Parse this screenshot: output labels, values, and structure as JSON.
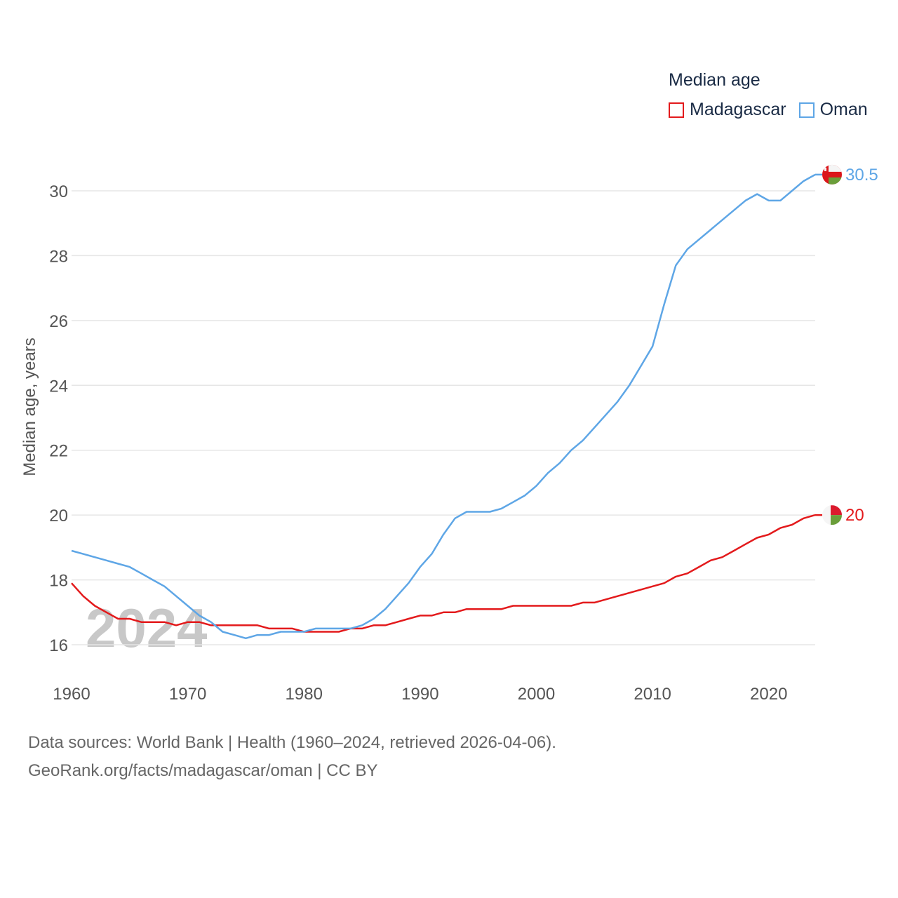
{
  "legend": {
    "title": "Median age",
    "items": [
      {
        "label": "Madagascar",
        "color": "#e31a1c"
      },
      {
        "label": "Oman",
        "color": "#5ea6e6"
      }
    ]
  },
  "footer": {
    "line1": "Data sources: World Bank | Health (1960–2024, retrieved 2026-04-06).",
    "line2": "GeoRank.org/facts/madagascar/oman | CC BY"
  },
  "chart_data": {
    "type": "line",
    "title": "Median age",
    "xlabel": "",
    "ylabel": "Median age, years",
    "xlim": [
      1960,
      2024
    ],
    "ylim": [
      15.5,
      31
    ],
    "x_ticks": [
      1960,
      1970,
      1980,
      1990,
      2000,
      2010,
      2020
    ],
    "y_ticks": [
      16,
      18,
      20,
      22,
      24,
      26,
      28,
      30
    ],
    "year_watermark": "2024",
    "grid": true,
    "x": [
      1960,
      1961,
      1962,
      1963,
      1964,
      1965,
      1966,
      1967,
      1968,
      1969,
      1970,
      1971,
      1972,
      1973,
      1974,
      1975,
      1976,
      1977,
      1978,
      1979,
      1980,
      1981,
      1982,
      1983,
      1984,
      1985,
      1986,
      1987,
      1988,
      1989,
      1990,
      1991,
      1992,
      1993,
      1994,
      1995,
      1996,
      1997,
      1998,
      1999,
      2000,
      2001,
      2002,
      2003,
      2004,
      2005,
      2006,
      2007,
      2008,
      2009,
      2010,
      2011,
      2012,
      2013,
      2014,
      2015,
      2016,
      2017,
      2018,
      2019,
      2020,
      2021,
      2022,
      2023,
      2024
    ],
    "series": [
      {
        "name": "Madagascar",
        "color": "#e31a1c",
        "end_label": "20",
        "values": [
          17.9,
          17.5,
          17.2,
          17.0,
          16.8,
          16.8,
          16.7,
          16.7,
          16.7,
          16.6,
          16.7,
          16.7,
          16.6,
          16.6,
          16.6,
          16.6,
          16.6,
          16.5,
          16.5,
          16.5,
          16.4,
          16.4,
          16.4,
          16.4,
          16.5,
          16.5,
          16.6,
          16.6,
          16.7,
          16.8,
          16.9,
          16.9,
          17.0,
          17.0,
          17.1,
          17.1,
          17.1,
          17.1,
          17.2,
          17.2,
          17.2,
          17.2,
          17.2,
          17.2,
          17.3,
          17.3,
          17.4,
          17.5,
          17.6,
          17.7,
          17.8,
          17.9,
          18.1,
          18.2,
          18.4,
          18.6,
          18.7,
          18.9,
          19.1,
          19.3,
          19.4,
          19.6,
          19.7,
          19.9,
          20.0
        ]
      },
      {
        "name": "Oman",
        "color": "#5ea6e6",
        "end_label": "30.5",
        "values": [
          18.9,
          18.8,
          18.7,
          18.6,
          18.5,
          18.4,
          18.2,
          18.0,
          17.8,
          17.5,
          17.2,
          16.9,
          16.7,
          16.4,
          16.3,
          16.2,
          16.3,
          16.3,
          16.4,
          16.4,
          16.4,
          16.5,
          16.5,
          16.5,
          16.5,
          16.6,
          16.8,
          17.1,
          17.5,
          17.9,
          18.4,
          18.8,
          19.4,
          19.9,
          20.1,
          20.1,
          20.1,
          20.2,
          20.4,
          20.6,
          20.9,
          21.3,
          21.6,
          22.0,
          22.3,
          22.7,
          23.1,
          23.5,
          24.0,
          24.6,
          25.2,
          26.5,
          27.7,
          28.2,
          28.5,
          28.8,
          29.1,
          29.4,
          29.7,
          29.9,
          29.7,
          29.7,
          30.0,
          30.3,
          30.5
        ]
      }
    ]
  }
}
